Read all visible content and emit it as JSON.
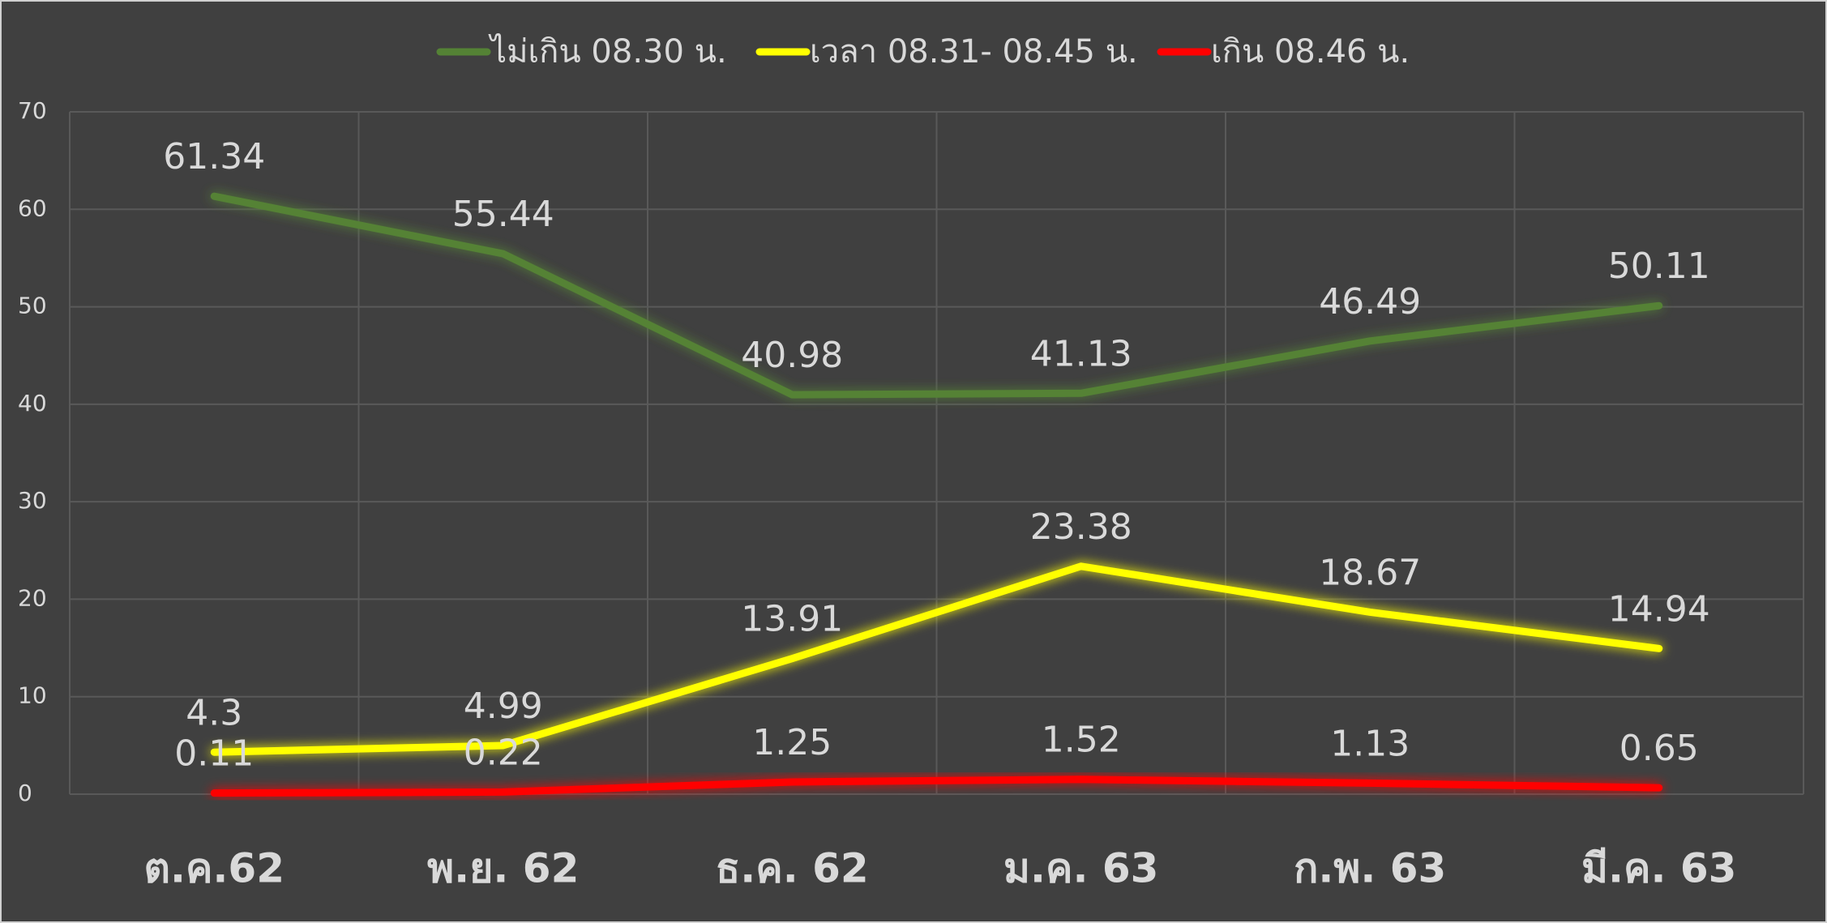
{
  "chart_data": {
    "type": "line",
    "categories": [
      "ต.ค.62",
      "พ.ย. 62",
      "ธ.ค. 62",
      "ม.ค. 63",
      "ก.พ. 63",
      "มี.ค. 63"
    ],
    "series": [
      {
        "name": "ไม่เกิน 08.30 น.",
        "color": "#548235",
        "values": [
          61.34,
          55.44,
          40.98,
          41.13,
          46.49,
          50.11
        ]
      },
      {
        "name": "เวลา 08.31- 08.45 น.",
        "color": "#ffff00",
        "values": [
          4.3,
          4.99,
          13.91,
          23.38,
          18.67,
          14.94
        ]
      },
      {
        "name": "เกิน 08.46 น.",
        "color": "#ff0000",
        "values": [
          0.11,
          0.22,
          1.25,
          1.52,
          1.13,
          0.65
        ]
      }
    ],
    "ylim": [
      0,
      70
    ],
    "yticks": [
      0,
      10,
      20,
      30,
      40,
      50,
      60,
      70
    ],
    "grid": true,
    "legend": "top"
  }
}
